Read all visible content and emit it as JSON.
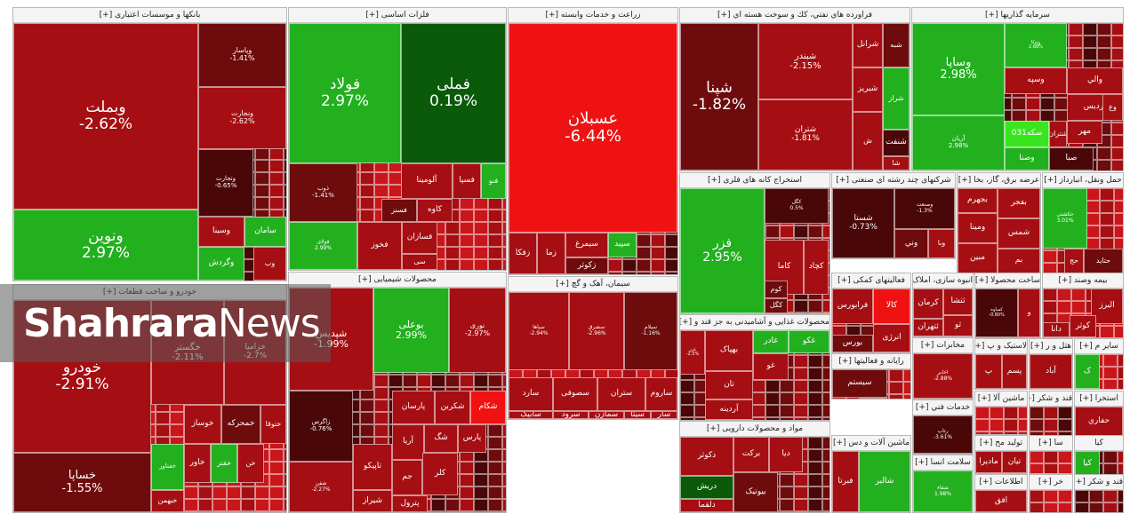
{
  "colors": {
    "deep_red": "#a50e12",
    "red": "#c8161b",
    "dark_red": "#6e0b0c",
    "maroon": "#4a0707",
    "bright_red": "#f01212",
    "green": "#22b01f",
    "dark_green": "#0a5a0a",
    "lime": "#39e61e"
  },
  "watermark": {
    "part1": "Shahrara",
    "part2": "News"
  },
  "chart_data": {
    "type": "treemap",
    "sectors": [
      {
        "name": "بانکها و موسسات اعتباری [+]",
        "stocks": [
          {
            "symbol": "وبملت",
            "change": "-2.62%"
          },
          {
            "symbol": "ونوین",
            "change": "2.97%"
          },
          {
            "symbol": "وپاسار",
            "change": "-1.41%"
          },
          {
            "symbol": "ونجارت",
            "change": "-2.62%"
          },
          {
            "symbol": "وتجارت",
            "change": "-0.65%"
          },
          {
            "symbol": "سامان",
            "change": ""
          },
          {
            "symbol": "وسینا",
            "change": ""
          },
          {
            "symbol": "وگردش",
            "change": ""
          },
          {
            "symbol": "وب",
            "change": ""
          }
        ]
      },
      {
        "name": "فلزات اساسی [+]",
        "stocks": [
          {
            "symbol": "فولاد",
            "change": "2.97%"
          },
          {
            "symbol": "فملی",
            "change": "0.19%"
          },
          {
            "symbol": "ذوب",
            "change": "-1.41%"
          },
          {
            "symbol": "فولای",
            "change": "2.99%"
          },
          {
            "symbol": "فخوز",
            "change": ""
          },
          {
            "symbol": "آلومینا",
            "change": ""
          },
          {
            "symbol": "فسپا",
            "change": ""
          },
          {
            "symbol": "فنو",
            "change": ""
          },
          {
            "symbol": "فسنز",
            "change": ""
          },
          {
            "symbol": "کاوه",
            "change": ""
          },
          {
            "symbol": "فسازان",
            "change": ""
          },
          {
            "symbol": "سی",
            "change": ""
          }
        ]
      },
      {
        "name": "زراعت و خدمات وابسته [+]",
        "stocks": [
          {
            "symbol": "عسبلان",
            "change": "-6.44%"
          },
          {
            "symbol": "زفکا",
            "change": ""
          },
          {
            "symbol": "زما",
            "change": ""
          },
          {
            "symbol": "سیمرغ",
            "change": ""
          },
          {
            "symbol": "زکوثر",
            "change": ""
          },
          {
            "symbol": "سپید",
            "change": ""
          }
        ]
      },
      {
        "name": "فراورده هاي نفتي، كك و سوخت هسته اي [+]",
        "stocks": [
          {
            "symbol": "شپنا",
            "change": "-1.82%"
          },
          {
            "symbol": "شبندر",
            "change": "-2.15%"
          },
          {
            "symbol": "شتران",
            "change": "-1.81%"
          },
          {
            "symbol": "شرانل",
            "change": ""
          },
          {
            "symbol": "شبه",
            "change": ""
          },
          {
            "symbol": "شبریز",
            "change": ""
          },
          {
            "symbol": "شراز",
            "change": ""
          },
          {
            "symbol": "شنفت",
            "change": ""
          },
          {
            "symbol": "ش",
            "change": ""
          },
          {
            "symbol": "شا",
            "change": ""
          }
        ]
      },
      {
        "name": "سرمایه گذاریها [+]",
        "stocks": [
          {
            "symbol": "وساپا",
            "change": "2.98%"
          },
          {
            "symbol": "آریان",
            "change": "2.98%"
          },
          {
            "symbol": "وتوکا",
            "change": "2.68%"
          },
          {
            "symbol": "وسپه",
            "change": ""
          },
          {
            "symbol": "والي",
            "change": ""
          },
          {
            "symbol": "پردیس",
            "change": ""
          },
          {
            "symbol": "وغ",
            "change": ""
          },
          {
            "symbol": "سکه031",
            "change": ""
          },
          {
            "symbol": "شتران",
            "change": ""
          },
          {
            "symbol": "مهر",
            "change": ""
          },
          {
            "symbol": "وصنا",
            "change": ""
          },
          {
            "symbol": "صبا",
            "change": ""
          }
        ]
      },
      {
        "name": "خودرو و ساخت قطعات [+]",
        "stocks": [
          {
            "symbol": "خودرو",
            "change": "-2.91%"
          },
          {
            "symbol": "خساپا",
            "change": "-1.55%"
          },
          {
            "symbol": "خگستر",
            "change": "-2.11%"
          },
          {
            "symbol": "خزامیا",
            "change": "-2.7%"
          },
          {
            "symbol": "خوساز",
            "change": ""
          },
          {
            "symbol": "خمحرکه",
            "change": ""
          },
          {
            "symbol": "ختوقا",
            "change": ""
          },
          {
            "symbol": "خاور",
            "change": ""
          },
          {
            "symbol": "خفناور",
            "change": ""
          },
          {
            "symbol": "خبهمن",
            "change": ""
          },
          {
            "symbol": "خفتر",
            "change": ""
          },
          {
            "symbol": "خن",
            "change": ""
          }
        ]
      },
      {
        "name": "محصولات شیمیایی [+]",
        "stocks": [
          {
            "symbol": "شپدیس",
            "change": "-1.99%"
          },
          {
            "symbol": "بوعلی",
            "change": "2.99%"
          },
          {
            "symbol": "نوری",
            "change": "-2.97%"
          },
          {
            "symbol": "زاگرس",
            "change": "-0.76%"
          },
          {
            "symbol": "پارسان",
            "change": ""
          },
          {
            "symbol": "شکربن",
            "change": ""
          },
          {
            "symbol": "شکام",
            "change": ""
          },
          {
            "symbol": "شگ",
            "change": ""
          },
          {
            "symbol": "پارس",
            "change": ""
          },
          {
            "symbol": "آریا",
            "change": ""
          },
          {
            "symbol": "تاپیکو",
            "change": ""
          },
          {
            "symbol": "جم",
            "change": ""
          },
          {
            "symbol": "کلر",
            "change": ""
          },
          {
            "symbol": "شیراز",
            "change": ""
          },
          {
            "symbol": "پترول",
            "change": ""
          },
          {
            "symbol": "شفن",
            "change": "-2.27%"
          }
        ]
      },
      {
        "name": "سیمان، آهک و گچ [+]",
        "stocks": [
          {
            "symbol": "سپاها",
            "change": "-2.94%"
          },
          {
            "symbol": "سشرق",
            "change": "-2.96%"
          },
          {
            "symbol": "سیلام",
            "change": "-1.16%"
          },
          {
            "symbol": "سصوفی",
            "change": ""
          },
          {
            "symbol": "ستران",
            "change": ""
          },
          {
            "symbol": "ساروم",
            "change": ""
          },
          {
            "symbol": "سرود",
            "change": ""
          },
          {
            "symbol": "سمازن",
            "change": ""
          },
          {
            "symbol": "سیتا",
            "change": ""
          },
          {
            "symbol": "سار",
            "change": ""
          },
          {
            "symbol": "سبجنو",
            "change": ""
          },
          {
            "symbol": "سآبیک",
            "change": ""
          },
          {
            "symbol": "سارد",
            "change": ""
          }
        ]
      },
      {
        "name": "استخراج کانه های فلزی [+]",
        "stocks": [
          {
            "symbol": "فزر",
            "change": "2.95%"
          },
          {
            "symbol": "کگل",
            "change": "0.5%"
          },
          {
            "symbol": "کاما",
            "change": ""
          },
          {
            "symbol": "کچاد",
            "change": ""
          },
          {
            "symbol": "کوم",
            "change": ""
          },
          {
            "symbol": "کگل",
            "change": ""
          }
        ]
      },
      {
        "name": "شرکتهای چند رشته ای صنعتی [+]",
        "stocks": [
          {
            "symbol": "شستا",
            "change": "-0.73%"
          },
          {
            "symbol": "وصنعت",
            "change": "-1.3%"
          },
          {
            "symbol": "وني",
            "change": ""
          },
          {
            "symbol": "وبا",
            "change": ""
          }
        ]
      },
      {
        "name": "عرضه برق، گاز، بخا [+]",
        "stocks": [
          {
            "symbol": "بجهرم",
            "change": ""
          },
          {
            "symbol": "بفجر",
            "change": ""
          },
          {
            "symbol": "ومینا",
            "change": ""
          },
          {
            "symbol": "شمس",
            "change": ""
          },
          {
            "symbol": "مبین",
            "change": ""
          },
          {
            "symbol": "بم",
            "change": ""
          }
        ]
      },
      {
        "name": "حمل ونقل، انبارداز [+]",
        "stocks": [
          {
            "symbol": "حتاید",
            "change": ""
          },
          {
            "symbol": "حج",
            "change": ""
          },
          {
            "symbol": "حکشتی",
            "change": "3.01%"
          }
        ]
      },
      {
        "name": "فعالیتهای کمکی [+]",
        "stocks": [
          {
            "symbol": "فرابورس",
            "change": ""
          },
          {
            "symbol": "کالا",
            "change": ""
          },
          {
            "symbol": "انرژی",
            "change": ""
          },
          {
            "symbol": "بورس",
            "change": ""
          }
        ]
      },
      {
        "name": "انبوه سازی، املاک [+]",
        "stocks": [
          {
            "symbol": "کرمان",
            "change": ""
          },
          {
            "symbol": "ثتشا",
            "change": ""
          },
          {
            "symbol": "ثتهران",
            "change": ""
          },
          {
            "symbol": "ثو",
            "change": ""
          }
        ]
      },
      {
        "name": "ساخت محصولا [+]",
        "stocks": [
          {
            "symbol": "کساوه",
            "change": "-0.80%"
          },
          {
            "symbol": "و",
            "change": ""
          }
        ]
      },
      {
        "name": "بیمه وصند [+]",
        "stocks": [
          {
            "symbol": "البرز",
            "change": ""
          },
          {
            "symbol": "کوثر",
            "change": ""
          },
          {
            "symbol": "دانا",
            "change": ""
          }
        ]
      },
      {
        "name": "محصولات غذایی و آشامیدنی به جز قند و [+]",
        "stocks": [
          {
            "symbol": "بهپاک",
            "change": ""
          },
          {
            "symbol": "غادر",
            "change": ""
          },
          {
            "symbol": "غکو",
            "change": ""
          },
          {
            "symbol": "غو",
            "change": ""
          },
          {
            "symbol": "تان",
            "change": ""
          },
          {
            "symbol": "آردینه",
            "change": ""
          },
          {
            "symbol": "غزر",
            "change": "-2.5%"
          }
        ]
      },
      {
        "name": "رایانه و فعالیتها [+]",
        "stocks": [
          {
            "symbol": "سیستم",
            "change": ""
          },
          {
            "symbol": "آپ",
            "change": ""
          }
        ]
      },
      {
        "name": "مخابرات [+]",
        "stocks": [
          {
            "symbol": "اخابر",
            "change": "-2.88%"
          }
        ]
      },
      {
        "name": "لاستیک و پ [+]",
        "stocks": [
          {
            "symbol": "پ",
            "change": ""
          },
          {
            "symbol": "پسم",
            "change": ""
          }
        ]
      },
      {
        "name": "هتل و ر [+]",
        "stocks": [
          {
            "symbol": "آباد",
            "change": ""
          }
        ]
      },
      {
        "name": "سایر م [+]",
        "stocks": [
          {
            "symbol": "ک",
            "change": ""
          }
        ]
      },
      {
        "name": "مواد و محصولات دارویی [+]",
        "stocks": [
          {
            "symbol": "دکوثر",
            "change": ""
          },
          {
            "symbol": "برکت",
            "change": ""
          },
          {
            "symbol": "دیا",
            "change": ""
          },
          {
            "symbol": "دریش",
            "change": ""
          },
          {
            "symbol": "دلقما",
            "change": ""
          },
          {
            "symbol": "بیوتیک",
            "change": ""
          }
        ]
      },
      {
        "name": "ماشین آلات و دس [+]",
        "stocks": [
          {
            "symbol": "فبرتا",
            "change": ""
          },
          {
            "symbol": "شالبر",
            "change": ""
          }
        ]
      },
      {
        "name": "خدمات فني [+]",
        "stocks": [
          {
            "symbol": "رتاپ",
            "change": "-3.61%"
          }
        ]
      },
      {
        "name": "ماشین آلا [+]",
        "stocks": []
      },
      {
        "name": "قند و شکر [+]",
        "stocks": []
      },
      {
        "name": "استخرا [+]",
        "stocks": [
          {
            "symbol": "حفاري",
            "change": ""
          }
        ]
      },
      {
        "name": "تولید مح [+]",
        "stocks": [
          {
            "symbol": "مادیرا",
            "change": ""
          },
          {
            "symbol": "تیان",
            "change": ""
          }
        ]
      },
      {
        "name": "سا [+]",
        "stocks": []
      },
      {
        "name": "کیا",
        "stocks": [
          {
            "symbol": "کیا",
            "change": ""
          }
        ]
      },
      {
        "name": "سلامت انسا [+]",
        "stocks": [
          {
            "symbol": "شفاء",
            "change": "1.98%"
          }
        ]
      },
      {
        "name": "اطلاعات [+]",
        "stocks": [
          {
            "symbol": "افق",
            "change": ""
          }
        ]
      },
      {
        "name": "خر [+]",
        "stocks": []
      },
      {
        "name": "قند و شکر [+]",
        "stocks": []
      }
    ]
  }
}
